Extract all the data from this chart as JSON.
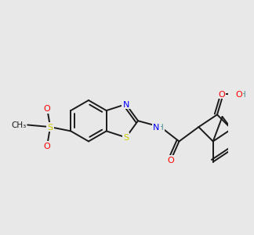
{
  "bg_color": "#e8e8e8",
  "bond_color": "#1a1a1a",
  "bond_width": 1.4,
  "colors": {
    "S": "#cccc00",
    "N": "#0000ff",
    "O": "#ff0000",
    "H": "#4a9090",
    "C": "#1a1a1a"
  },
  "font_size": 8.0
}
